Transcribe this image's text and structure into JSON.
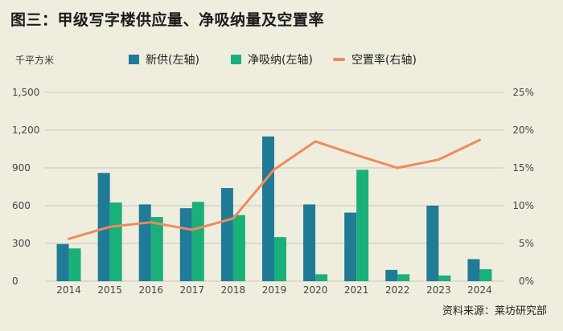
{
  "header": {
    "title": "图三：甲级写字楼供应量、净吸纳量及空置率",
    "left_unit": "千平方米"
  },
  "footer": {
    "source": "资料来源：莱坊研究部"
  },
  "colors": {
    "background": "#efedde",
    "supply": "#1f7b96",
    "absorption": "#19b07a",
    "vacancy": "#ef8a5c",
    "grid": "#c9c6b8",
    "axis_text": "#444444"
  },
  "chart_data": {
    "type": "bar",
    "title": "图三：甲级写字楼供应量、净吸纳量及空置率",
    "xlabel": "",
    "ylabel": "千平方米",
    "categories": [
      "2014",
      "2015",
      "2016",
      "2017",
      "2018",
      "2019",
      "2020",
      "2021",
      "2022",
      "2023",
      "2024"
    ],
    "ylim": [
      0,
      1500
    ],
    "y_ticks": [
      0,
      300,
      600,
      900,
      1200,
      1500
    ],
    "y_tick_labels": [
      "0",
      "300",
      "600",
      "900",
      "1,200",
      "1,500"
    ],
    "y2lim": [
      0,
      25
    ],
    "y2_ticks": [
      0,
      5,
      10,
      15,
      20,
      25
    ],
    "y2_tick_labels": [
      "0%",
      "5%",
      "10%",
      "15%",
      "20%",
      "25%"
    ],
    "grid": true,
    "legend_position": "top",
    "series": [
      {
        "name": "新供(左轴)",
        "type": "bar",
        "axis": "left",
        "values": [
          295,
          860,
          610,
          580,
          740,
          1150,
          610,
          545,
          90,
          600,
          175
        ]
      },
      {
        "name": "净吸纳(左轴)",
        "type": "bar",
        "axis": "left",
        "values": [
          260,
          625,
          510,
          630,
          525,
          350,
          55,
          885,
          55,
          45,
          95
        ]
      },
      {
        "name": "空置率(右轴)",
        "type": "line",
        "axis": "right",
        "values": [
          5.6,
          7.2,
          7.8,
          6.8,
          8.3,
          14.8,
          18.5,
          16.7,
          15.0,
          16.1,
          18.7
        ]
      }
    ]
  }
}
